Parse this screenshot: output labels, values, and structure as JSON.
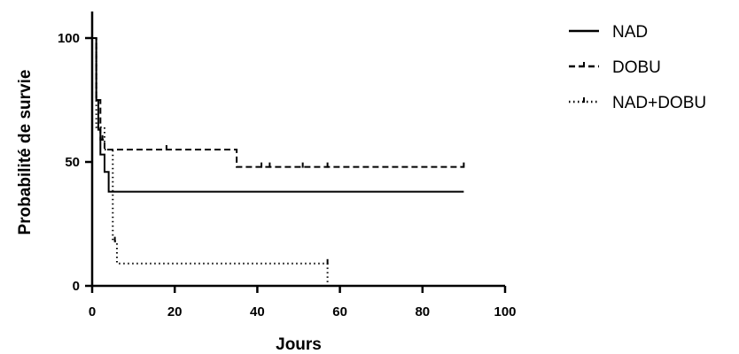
{
  "chart_data": {
    "type": "line",
    "title": "",
    "xlabel": "Jours",
    "ylabel": "Probabilité de survie",
    "xlim": [
      0,
      100
    ],
    "ylim": [
      0,
      110
    ],
    "x_ticks": [
      0,
      20,
      40,
      60,
      80,
      100
    ],
    "y_ticks": [
      0,
      50,
      100
    ],
    "x_tick_labels": [
      "0",
      "20",
      "40",
      "60",
      "80",
      "100"
    ],
    "y_tick_labels": [
      "0",
      "50",
      "100"
    ],
    "legend_position": "top-right",
    "series": [
      {
        "name": "NAD",
        "style": "solid",
        "steps": [
          [
            0,
            100
          ],
          [
            1,
            75
          ],
          [
            1.5,
            63
          ],
          [
            2,
            53
          ],
          [
            3,
            46
          ],
          [
            4,
            38
          ],
          [
            90,
            38
          ]
        ],
        "censored": []
      },
      {
        "name": "DOBU",
        "style": "dashed",
        "steps": [
          [
            0,
            100
          ],
          [
            1,
            75
          ],
          [
            2,
            59
          ],
          [
            3,
            55
          ],
          [
            35,
            48
          ],
          [
            90,
            48
          ]
        ],
        "censored": [
          [
            2.5,
            59
          ],
          [
            18,
            55
          ],
          [
            41,
            48
          ],
          [
            43,
            48
          ],
          [
            51,
            48
          ],
          [
            57,
            48
          ],
          [
            90,
            48
          ]
        ]
      },
      {
        "name": "NAD+DOBU",
        "style": "dotted",
        "steps": [
          [
            0,
            100
          ],
          [
            1,
            64
          ],
          [
            3,
            55
          ],
          [
            5,
            18
          ],
          [
            6,
            9
          ],
          [
            57,
            0
          ]
        ],
        "censored": [
          [
            5.5,
            18
          ],
          [
            57,
            9
          ]
        ]
      }
    ]
  }
}
